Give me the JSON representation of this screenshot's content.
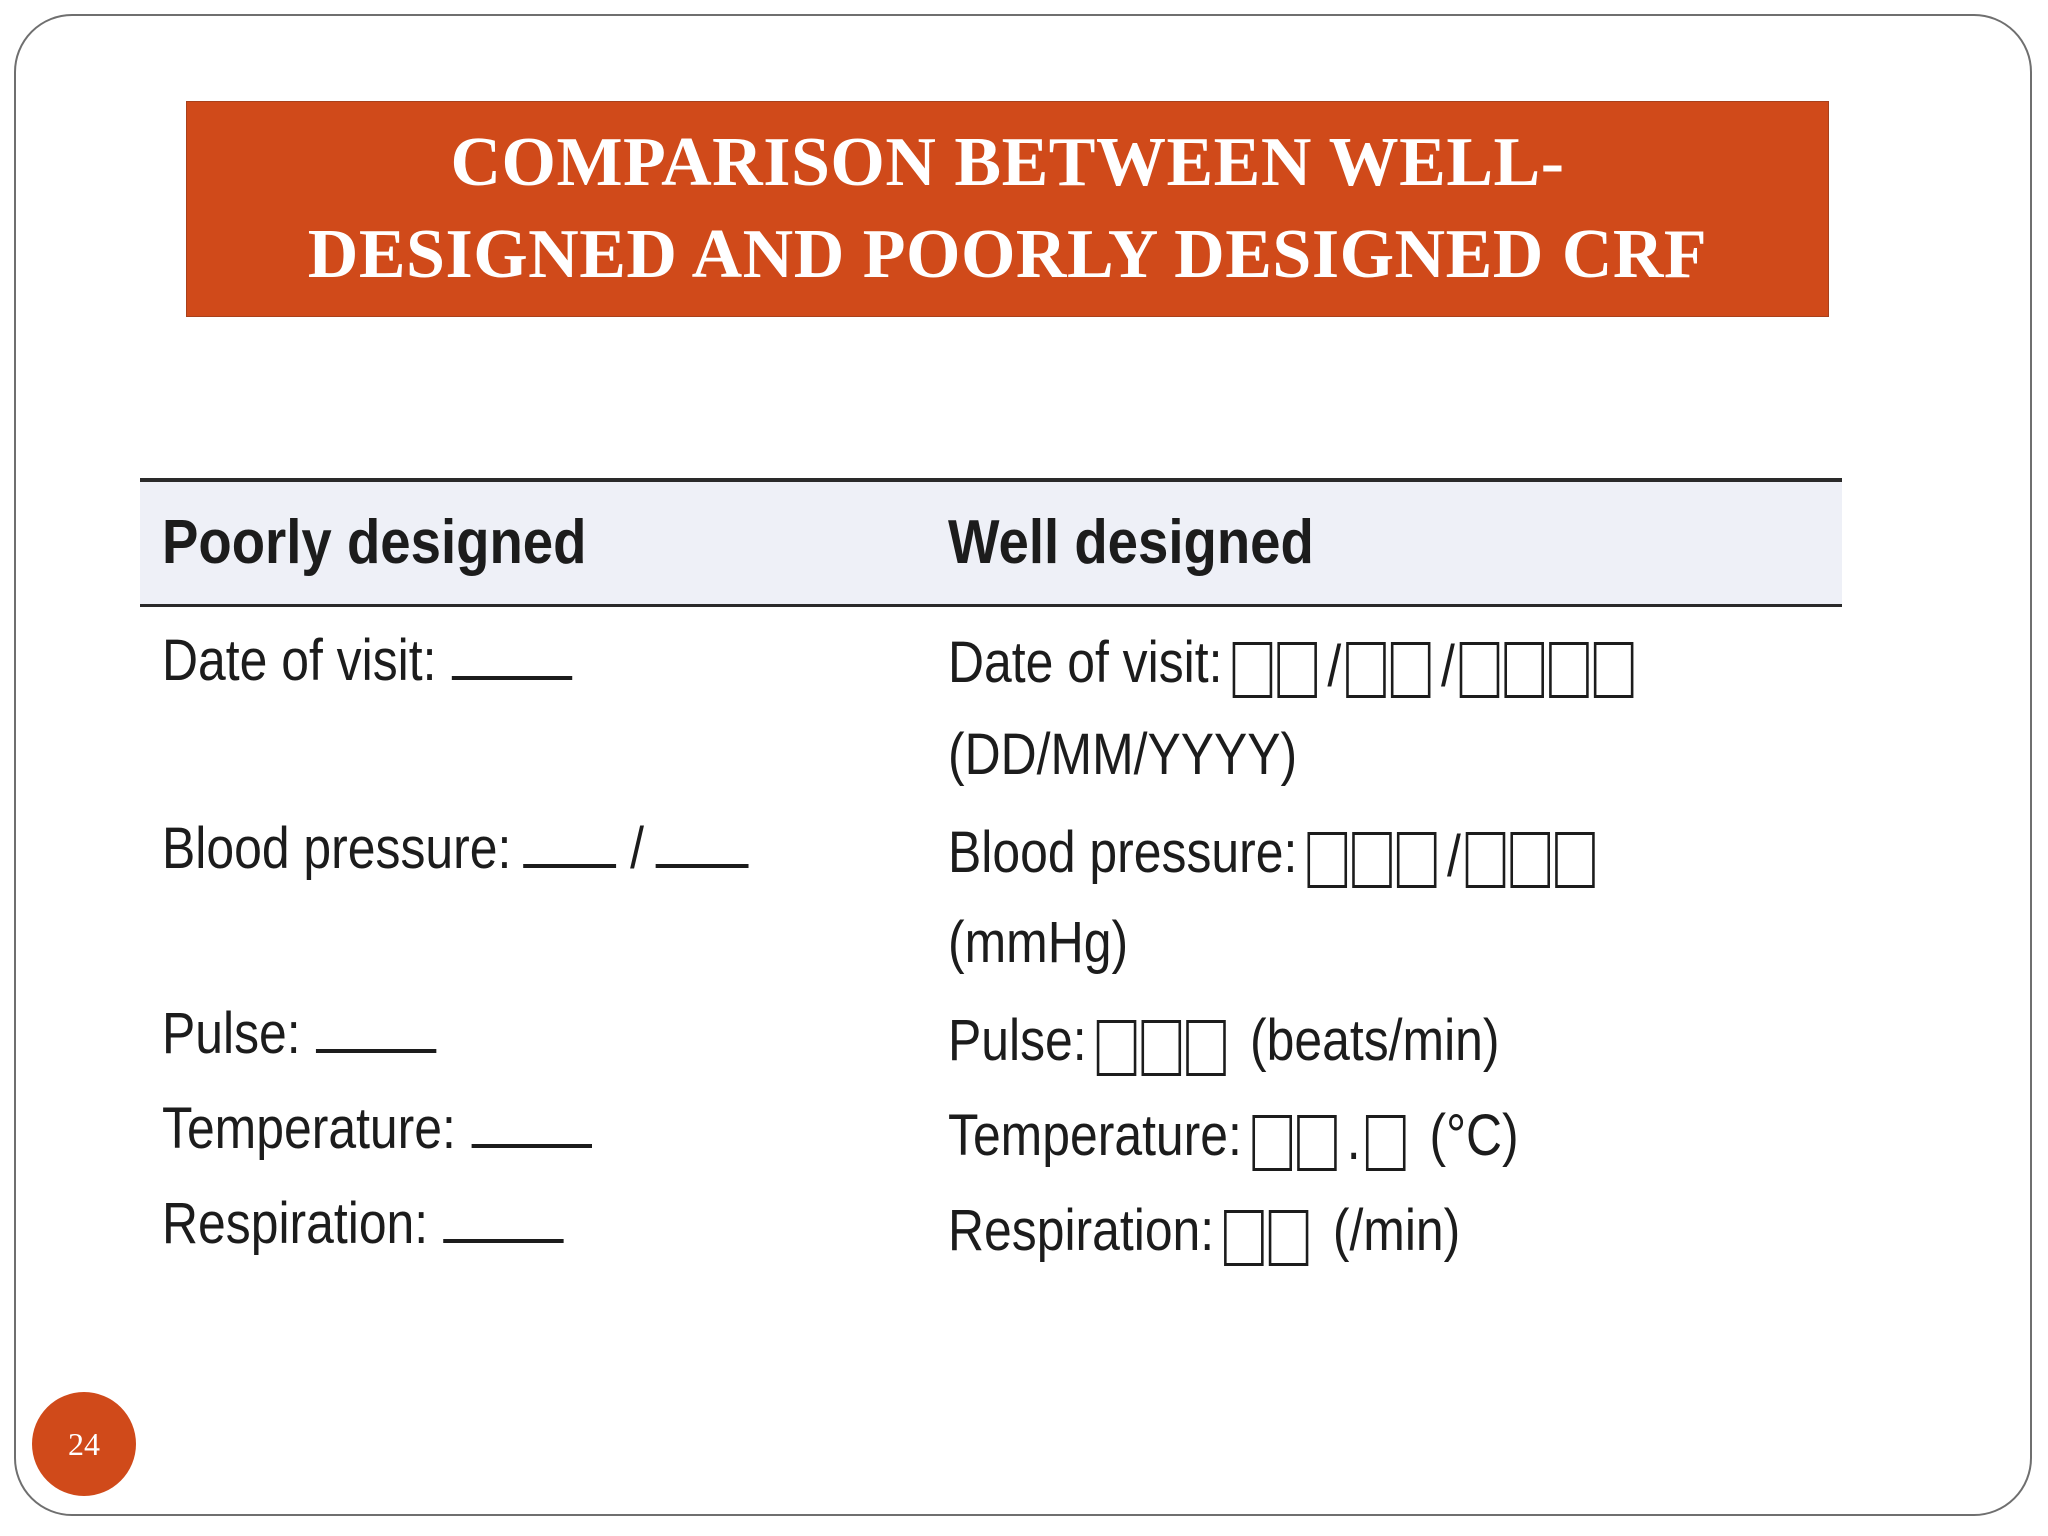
{
  "slide": {
    "title_line1": "COMPARISON BETWEEN WELL-",
    "title_line2": "DESIGNED AND POORLY DESIGNED CRF",
    "page_number": "24"
  },
  "table": {
    "headers": {
      "poor": "Poorly designed",
      "well": "Well designed"
    },
    "poor": {
      "date": "Date of visit:",
      "bp": "Blood pressure:",
      "bp_sep": "/",
      "pulse": "Pulse:",
      "temp": "Temperature:",
      "resp": "Respiration:"
    },
    "well": {
      "date": "Date of visit:",
      "date_sep": "/",
      "date_unit": "(DD/MM/YYYY)",
      "bp": "Blood pressure:",
      "bp_sep": "/",
      "bp_unit": "(mmHg)",
      "pulse": "Pulse:",
      "pulse_unit": "(beats/min)",
      "temp": "Temperature:",
      "temp_sep": ".",
      "temp_unit": "(°C)",
      "resp": "Respiration:",
      "resp_unit": "(/min)"
    }
  }
}
